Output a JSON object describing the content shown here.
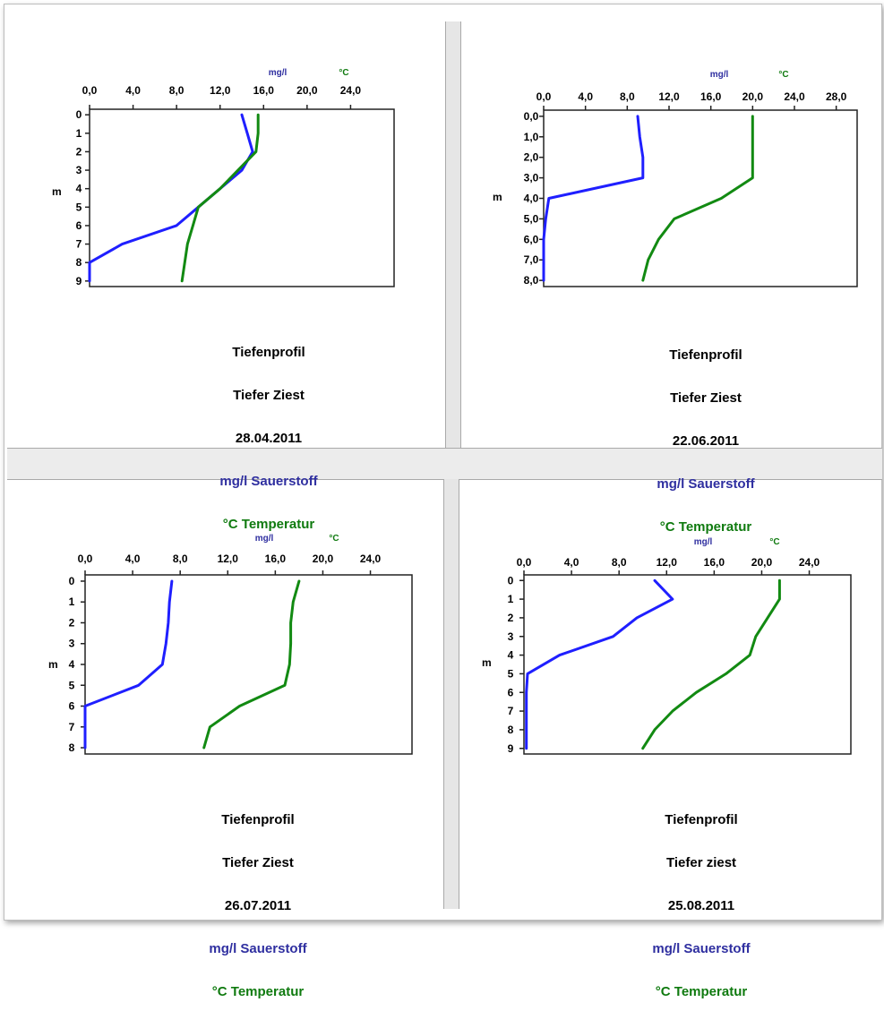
{
  "colors": {
    "oxygen": "#1f1fff",
    "temperature": "#128a12",
    "oxygen_label": "#2f2fa0",
    "temperature_label": "#0f7a0f"
  },
  "chart_data": [
    {
      "type": "line",
      "title_lines": [
        "Tiefenprofil",
        "Tiefer Ziest",
        "28.04.2011"
      ],
      "legend": {
        "oxygen": "mg/l Sauerstoff",
        "temperature": "°C Temperatur"
      },
      "unit_labels": {
        "oxygen": "mg/l",
        "temperature": "°C"
      },
      "ylabel": "m",
      "xticks": [
        "0,0",
        "4,0",
        "8,0",
        "12,0",
        "16,0",
        "20,0",
        "24,0"
      ],
      "xlim": [
        0,
        28
      ],
      "yticks": [
        "0",
        "1",
        "2",
        "3",
        "4",
        "5",
        "6",
        "7",
        "8",
        "9"
      ],
      "ylim": [
        -0.3,
        9.3
      ],
      "series": [
        {
          "name": "mg/l Sauerstoff",
          "color_key": "oxygen",
          "points": [
            [
              14.0,
              0
            ],
            [
              14.5,
              1
            ],
            [
              15.0,
              2
            ],
            [
              14.0,
              3
            ],
            [
              10.0,
              5
            ],
            [
              8.0,
              6
            ],
            [
              3.0,
              7
            ],
            [
              0,
              8
            ],
            [
              0,
              9
            ]
          ]
        },
        {
          "name": "°C Temperatur",
          "color_key": "temperature",
          "points": [
            [
              15.5,
              0
            ],
            [
              15.5,
              1
            ],
            [
              15.3,
              2
            ],
            [
              12.0,
              4
            ],
            [
              10.0,
              5
            ],
            [
              9.5,
              6
            ],
            [
              9.0,
              7
            ],
            [
              8.5,
              9
            ]
          ]
        }
      ]
    },
    {
      "type": "line",
      "title_lines": [
        "Tiefenprofil",
        "Tiefer Ziest",
        "22.06.2011"
      ],
      "legend": {
        "oxygen": "mg/l Sauerstoff",
        "temperature": "°C Temperatur"
      },
      "unit_labels": {
        "oxygen": "mg/l",
        "temperature": "°C"
      },
      "ylabel": "m",
      "xticks": [
        "0,0",
        "4,0",
        "8,0",
        "12,0",
        "16,0",
        "20,0",
        "24,0",
        "28,0"
      ],
      "xlim": [
        0,
        30
      ],
      "yticks": [
        "0,0",
        "1,0",
        "2,0",
        "3,0",
        "4,0",
        "5,0",
        "6,0",
        "7,0",
        "8,0"
      ],
      "ylim": [
        -0.3,
        8.3
      ],
      "series": [
        {
          "name": "mg/l Sauerstoff",
          "color_key": "oxygen",
          "points": [
            [
              9.0,
              0
            ],
            [
              9.2,
              1
            ],
            [
              9.5,
              2
            ],
            [
              9.5,
              3
            ],
            [
              0.5,
              4
            ],
            [
              0.2,
              5
            ],
            [
              0,
              6
            ],
            [
              0,
              7
            ],
            [
              0,
              8
            ]
          ]
        },
        {
          "name": "°C Temperatur",
          "color_key": "temperature",
          "points": [
            [
              20.0,
              0
            ],
            [
              20.0,
              1
            ],
            [
              20.0,
              2
            ],
            [
              20.0,
              3
            ],
            [
              17.0,
              4
            ],
            [
              12.5,
              5
            ],
            [
              11.0,
              6
            ],
            [
              10.0,
              7
            ],
            [
              9.5,
              8
            ]
          ]
        }
      ]
    },
    {
      "type": "line",
      "title_lines": [
        "Tiefenprofil",
        "Tiefer Ziest",
        "26.07.2011"
      ],
      "legend": {
        "oxygen": "mg/l Sauerstoff",
        "temperature": "°C Temperatur"
      },
      "unit_labels": {
        "oxygen": "mg/l",
        "temperature": "°C"
      },
      "ylabel": "m",
      "xticks": [
        "0,0",
        "4,0",
        "8,0",
        "12,0",
        "16,0",
        "20,0",
        "24,0"
      ],
      "xlim": [
        0,
        27.5
      ],
      "yticks": [
        "0",
        "1",
        "2",
        "3",
        "4",
        "5",
        "6",
        "7",
        "8"
      ],
      "ylim": [
        -0.3,
        8.3
      ],
      "series": [
        {
          "name": "mg/l Sauerstoff",
          "color_key": "oxygen",
          "points": [
            [
              7.3,
              0
            ],
            [
              7.1,
              1
            ],
            [
              7.0,
              2
            ],
            [
              6.8,
              3
            ],
            [
              6.5,
              4
            ],
            [
              4.5,
              5
            ],
            [
              0,
              6
            ],
            [
              0,
              7
            ],
            [
              0,
              8
            ]
          ]
        },
        {
          "name": "°C Temperatur",
          "color_key": "temperature",
          "points": [
            [
              18.0,
              0
            ],
            [
              17.5,
              1
            ],
            [
              17.3,
              2
            ],
            [
              17.3,
              3
            ],
            [
              17.2,
              4
            ],
            [
              16.8,
              5
            ],
            [
              13.0,
              6
            ],
            [
              10.5,
              7
            ],
            [
              10.0,
              8
            ]
          ]
        }
      ]
    },
    {
      "type": "line",
      "title_lines": [
        "Tiefenprofil",
        "Tiefer ziest",
        "25.08.2011"
      ],
      "legend": {
        "oxygen": "mg/l Sauerstoff",
        "temperature": "°C Temperatur"
      },
      "unit_labels": {
        "oxygen": "mg/l",
        "temperature": "°C"
      },
      "ylabel": "m",
      "xticks": [
        "0,0",
        "4,0",
        "8,0",
        "12,0",
        "16,0",
        "20,0",
        "24,0"
      ],
      "xlim": [
        0,
        27.5
      ],
      "yticks": [
        "0",
        "1",
        "2",
        "3",
        "4",
        "5",
        "6",
        "7",
        "8",
        "9"
      ],
      "ylim": [
        -0.3,
        9.3
      ],
      "series": [
        {
          "name": "mg/l Sauerstoff",
          "color_key": "oxygen",
          "points": [
            [
              11.0,
              0
            ],
            [
              12.5,
              1
            ],
            [
              9.5,
              2
            ],
            [
              7.5,
              3
            ],
            [
              3.0,
              4
            ],
            [
              0.3,
              5
            ],
            [
              0.2,
              6
            ],
            [
              0.2,
              7
            ],
            [
              0.2,
              8
            ],
            [
              0.2,
              9
            ]
          ]
        },
        {
          "name": "°C Temperatur",
          "color_key": "temperature",
          "points": [
            [
              21.5,
              0
            ],
            [
              21.5,
              1
            ],
            [
              20.5,
              2
            ],
            [
              19.5,
              3
            ],
            [
              19.0,
              4
            ],
            [
              17.0,
              5
            ],
            [
              14.5,
              6
            ],
            [
              12.5,
              7
            ],
            [
              11.0,
              8
            ],
            [
              10.0,
              9
            ]
          ]
        }
      ]
    }
  ]
}
